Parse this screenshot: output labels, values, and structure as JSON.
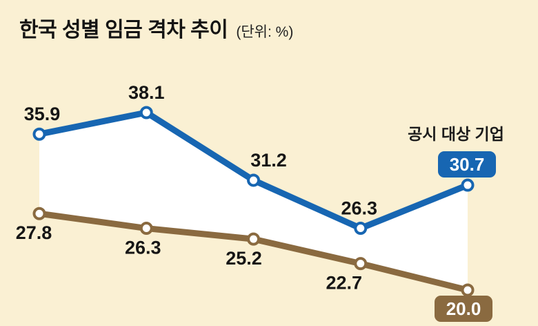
{
  "header": {
    "title": "한국 성별 임금 격차 추이",
    "unit_label": "(단위: %)"
  },
  "chart_data": {
    "type": "line",
    "title": "한국 성별 임금 격차 추이",
    "unit": "%",
    "series": [
      {
        "name": "공시 대상 기업",
        "color": "#1766b2",
        "values": [
          35.9,
          38.1,
          31.2,
          26.3,
          30.7
        ],
        "last_value_badge": "30.7"
      },
      {
        "name": "",
        "color": "#8a6a40",
        "values": [
          27.8,
          26.3,
          25.2,
          22.7,
          20.0
        ],
        "last_value_badge": "20.0"
      }
    ],
    "point_labels": {
      "series_0": [
        "35.9",
        "38.1",
        "31.2",
        "26.3",
        "30.7"
      ],
      "series_1": [
        "27.8",
        "26.3",
        "25.2",
        "22.7",
        "20.0"
      ]
    },
    "ylim": [
      18,
      40
    ],
    "grid": false,
    "legend_position": "annotation-right",
    "background_color": "#faf0d3",
    "fill_between_color": "#ffffff",
    "label_text_color": "#161616",
    "badge_text_color": "#ffffff"
  }
}
